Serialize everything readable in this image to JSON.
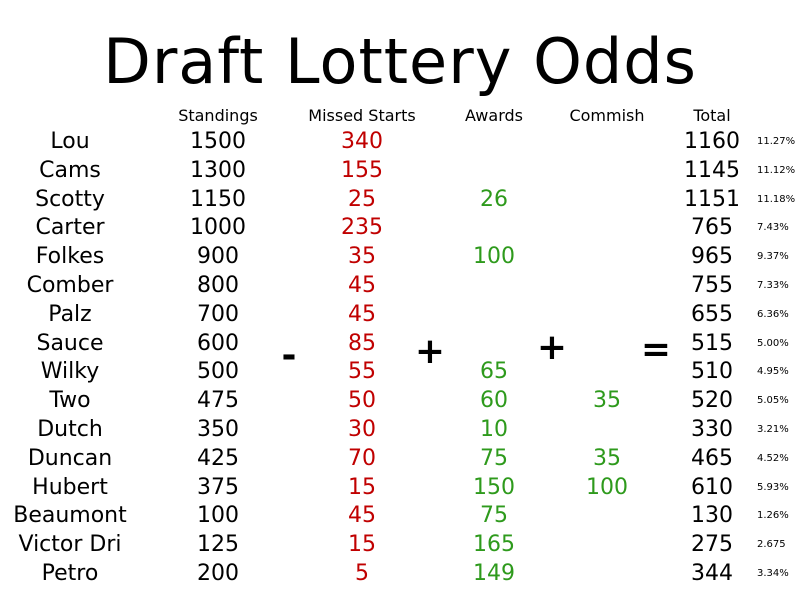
{
  "title": "Draft Lottery Odds",
  "headers": {
    "standings": "Standings",
    "missed": "Missed Starts",
    "awards": "Awards",
    "commish": "Commish",
    "total": "Total"
  },
  "operators": {
    "minus": "-",
    "plus1": "+",
    "plus2": "+",
    "equals": "="
  },
  "colors": {
    "missed": "#c00000",
    "awards": "#2e9a1c",
    "commish": "#2e9a1c"
  },
  "rows": [
    {
      "name": "Lou",
      "standings": "1500",
      "missed": "340",
      "awards": "",
      "commish": "",
      "total": "1160",
      "pct": "11.27%"
    },
    {
      "name": "Cams",
      "standings": "1300",
      "missed": "155",
      "awards": "",
      "commish": "",
      "total": "1145",
      "pct": "11.12%"
    },
    {
      "name": "Scotty",
      "standings": "1150",
      "missed": "25",
      "awards": "26",
      "commish": "",
      "total": "1151",
      "pct": "11.18%"
    },
    {
      "name": "Carter",
      "standings": "1000",
      "missed": "235",
      "awards": "",
      "commish": "",
      "total": "765",
      "pct": "7.43%"
    },
    {
      "name": "Folkes",
      "standings": "900",
      "missed": "35",
      "awards": "100",
      "commish": "",
      "total": "965",
      "pct": "9.37%"
    },
    {
      "name": "Comber",
      "standings": "800",
      "missed": "45",
      "awards": "",
      "commish": "",
      "total": "755",
      "pct": "7.33%"
    },
    {
      "name": "Palz",
      "standings": "700",
      "missed": "45",
      "awards": "",
      "commish": "",
      "total": "655",
      "pct": "6.36%"
    },
    {
      "name": "Sauce",
      "standings": "600",
      "missed": "85",
      "awards": "",
      "commish": "",
      "total": "515",
      "pct": "5.00%"
    },
    {
      "name": "Wilky",
      "standings": "500",
      "missed": "55",
      "awards": "65",
      "commish": "",
      "total": "510",
      "pct": "4.95%"
    },
    {
      "name": "Two",
      "standings": "475",
      "missed": "50",
      "awards": "60",
      "commish": "35",
      "total": "520",
      "pct": "5.05%"
    },
    {
      "name": "Dutch",
      "standings": "350",
      "missed": "30",
      "awards": "10",
      "commish": "",
      "total": "330",
      "pct": "3.21%"
    },
    {
      "name": "Duncan",
      "standings": "425",
      "missed": "70",
      "awards": "75",
      "commish": "35",
      "total": "465",
      "pct": "4.52%"
    },
    {
      "name": "Hubert",
      "standings": "375",
      "missed": "15",
      "awards": "150",
      "commish": "100",
      "total": "610",
      "pct": "5.93%"
    },
    {
      "name": "Beaumont",
      "standings": "100",
      "missed": "45",
      "awards": "75",
      "commish": "",
      "total": "130",
      "pct": "1.26%"
    },
    {
      "name": "Victor Dri",
      "standings": "125",
      "missed": "15",
      "awards": "165",
      "commish": "",
      "total": "275",
      "pct": "2.675"
    },
    {
      "name": "Petro",
      "standings": "200",
      "missed": "5",
      "awards": "149",
      "commish": "",
      "total": "344",
      "pct": "3.34%"
    }
  ]
}
